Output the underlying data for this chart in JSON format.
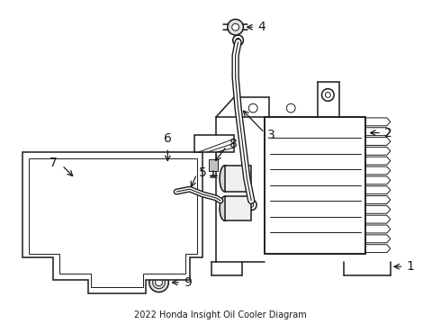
{
  "title": "2022 Honda Insight Oil Cooler Diagram",
  "bg_color": "#ffffff",
  "line_color": "#1a1a1a",
  "figsize": [
    4.9,
    3.6
  ],
  "dpi": 100,
  "label_fontsize": 10
}
